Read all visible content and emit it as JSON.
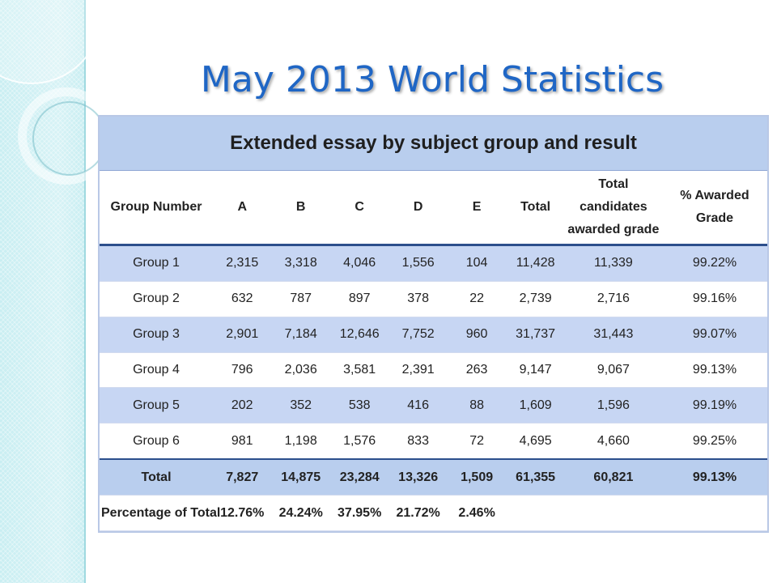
{
  "slide": {
    "title": "May 2013 World Statistics"
  },
  "table": {
    "caption": "Extended essay by subject group and result",
    "headers": {
      "group": "Group Number",
      "a": "A",
      "b": "B",
      "c": "C",
      "d": "D",
      "e": "E",
      "total": "Total",
      "awarded_line1": "Total candidates",
      "awarded_line2": "awarded grade",
      "pct": "% Awarded Grade"
    },
    "rows": [
      {
        "group": "Group 1",
        "a": "2,315",
        "b": "3,318",
        "c": "4,046",
        "d": "1,556",
        "e": "104",
        "total": "11,428",
        "awarded": "11,339",
        "pct": "99.22%"
      },
      {
        "group": "Group 2",
        "a": "632",
        "b": "787",
        "c": "897",
        "d": "378",
        "e": "22",
        "total": "2,739",
        "awarded": "2,716",
        "pct": "99.16%"
      },
      {
        "group": "Group 3",
        "a": "2,901",
        "b": "7,184",
        "c": "12,646",
        "d": "7,752",
        "e": "960",
        "total": "31,737",
        "awarded": "31,443",
        "pct": "99.07%"
      },
      {
        "group": "Group 4",
        "a": "796",
        "b": "2,036",
        "c": "3,581",
        "d": "2,391",
        "e": "263",
        "total": "9,147",
        "awarded": "9,067",
        "pct": "99.13%"
      },
      {
        "group": "Group 5",
        "a": "202",
        "b": "352",
        "c": "538",
        "d": "416",
        "e": "88",
        "total": "1,609",
        "awarded": "1,596",
        "pct": "99.19%"
      },
      {
        "group": "Group 6",
        "a": "981",
        "b": "1,198",
        "c": "1,576",
        "d": "833",
        "e": "72",
        "total": "4,695",
        "awarded": "4,660",
        "pct": "99.25%"
      }
    ],
    "total_row": {
      "group": "Total",
      "a": "7,827",
      "b": "14,875",
      "c": "23,284",
      "d": "13,326",
      "e": "1,509",
      "total": "61,355",
      "awarded": "60,821",
      "pct": "99.13%"
    },
    "pct_row": {
      "group": "Percentage of Total",
      "a": "12.76%",
      "b": "24.24%",
      "c": "37.95%",
      "d": "21.72%",
      "e": "2.46%",
      "total": "",
      "awarded": "",
      "pct": ""
    }
  },
  "colors": {
    "title": "#1f66c5",
    "header_band": "#b9ceee",
    "row_shade": "#c7d6f3",
    "rule": "#2c4f8c",
    "left_band": "#c9eef2"
  }
}
